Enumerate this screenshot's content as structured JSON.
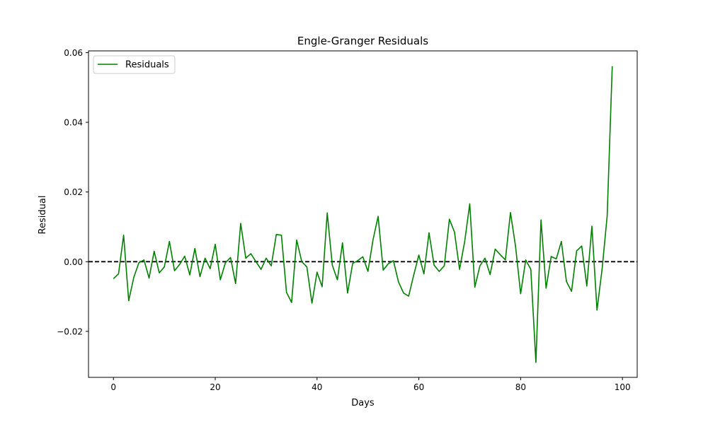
{
  "chart_data": {
    "type": "line",
    "title": "Engle-Granger Residuals",
    "xlabel": "Days",
    "ylabel": "Residual",
    "xlim": [
      -4.9,
      102.9
    ],
    "ylim": [
      -0.0332,
      0.0605
    ],
    "x_ticks": [
      0,
      20,
      40,
      60,
      80,
      100
    ],
    "x_tick_labels": [
      "0",
      "20",
      "40",
      "60",
      "80",
      "100"
    ],
    "y_ticks": [
      -0.02,
      0.0,
      0.02,
      0.04,
      0.06
    ],
    "y_tick_labels": [
      "−0.02",
      "0.00",
      "0.02",
      "0.04",
      "0.06"
    ],
    "grid": false,
    "legend_position": "top-left",
    "reference_line": {
      "y": 0.0,
      "style": "dashed",
      "color": "#000000"
    },
    "series": [
      {
        "name": "Residuals",
        "color": "#008000",
        "x": [
          0,
          1,
          2,
          3,
          4,
          5,
          6,
          7,
          8,
          9,
          10,
          11,
          12,
          13,
          14,
          15,
          16,
          17,
          18,
          19,
          20,
          21,
          22,
          23,
          24,
          25,
          26,
          27,
          28,
          29,
          30,
          31,
          32,
          33,
          34,
          35,
          36,
          37,
          38,
          39,
          40,
          41,
          42,
          43,
          44,
          45,
          46,
          47,
          48,
          49,
          50,
          51,
          52,
          53,
          54,
          55,
          56,
          57,
          58,
          59,
          60,
          61,
          62,
          63,
          64,
          65,
          66,
          67,
          68,
          69,
          70,
          71,
          72,
          73,
          74,
          75,
          76,
          77,
          78,
          79,
          80,
          81,
          82,
          83,
          84,
          85,
          86,
          87,
          88,
          89,
          90,
          91,
          92,
          93,
          94,
          95,
          96,
          97,
          98
        ],
        "values": [
          -0.0049,
          -0.0035,
          0.0076,
          -0.0112,
          -0.0045,
          -0.0003,
          0.0005,
          -0.0047,
          0.003,
          -0.0032,
          -0.0015,
          0.0058,
          -0.0026,
          -0.0008,
          0.0016,
          -0.0038,
          0.0038,
          -0.0043,
          0.001,
          -0.002,
          0.005,
          -0.0052,
          -0.0003,
          0.0012,
          -0.0063,
          0.011,
          0.001,
          0.0023,
          0.0,
          -0.0022,
          0.001,
          -0.0012,
          0.0078,
          0.0076,
          -0.0088,
          -0.0117,
          0.0062,
          0.0,
          -0.0015,
          -0.0119,
          -0.003,
          -0.0072,
          0.014,
          -0.001,
          -0.0052,
          0.0054,
          -0.009,
          -0.0005,
          0.0003,
          0.0014,
          -0.0028,
          0.0063,
          0.013,
          -0.0024,
          -0.0006,
          0.0003,
          -0.0058,
          -0.009,
          -0.0099,
          -0.0038,
          0.0019,
          -0.0035,
          0.0083,
          -0.001,
          -0.0028,
          -0.0012,
          0.0122,
          0.0085,
          -0.0022,
          0.0057,
          0.0166,
          -0.0073,
          -0.0012,
          0.001,
          -0.0037,
          0.0036,
          0.002,
          0.0005,
          0.0141,
          0.0044,
          -0.0092,
          0.0005,
          -0.0022,
          -0.0289,
          0.012,
          -0.0076,
          0.0015,
          0.0008,
          0.0058,
          -0.0057,
          -0.0085,
          0.0031,
          0.0045,
          -0.007,
          0.0102,
          -0.0139,
          -0.0022,
          0.0131,
          0.0561
        ]
      }
    ]
  }
}
